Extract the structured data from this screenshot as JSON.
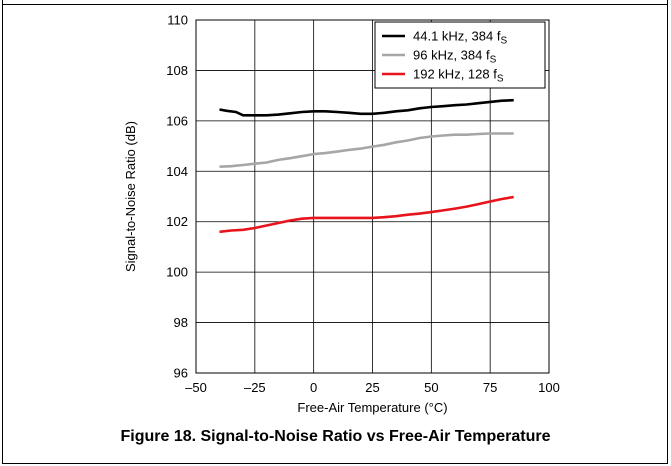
{
  "caption": "Figure 18. Signal-to-Noise Ratio vs Free-Air Temperature",
  "chart_data": {
    "type": "line",
    "title": "",
    "xlabel": "Free-Air Temperature (°C)",
    "ylabel": "Signal-to-Noise Ratio (dB)",
    "xlim": [
      -50,
      100
    ],
    "ylim": [
      96,
      110
    ],
    "x_ticks": [
      -50,
      -25,
      0,
      25,
      50,
      75,
      100
    ],
    "x_tick_labels": [
      "–50",
      "–25",
      "0",
      "25",
      "50",
      "75",
      "100"
    ],
    "y_ticks": [
      96,
      98,
      100,
      102,
      104,
      106,
      108,
      110
    ],
    "y_tick_labels": [
      "96",
      "98",
      "100",
      "102",
      "104",
      "106",
      "108",
      "110"
    ],
    "grid": true,
    "legend_position": "top-right",
    "series": [
      {
        "name": "44.1 kHz, 384 fS",
        "label_main": "44.1 kHz, 384 f",
        "label_sub": "S",
        "color": "#000000",
        "x": [
          -40,
          -37,
          -33,
          -30,
          -25,
          -20,
          -15,
          -10,
          -5,
          0,
          5,
          10,
          15,
          20,
          25,
          30,
          35,
          40,
          45,
          50,
          55,
          60,
          65,
          70,
          75,
          80,
          85
        ],
        "y": [
          106.45,
          106.4,
          106.35,
          106.22,
          106.22,
          106.22,
          106.25,
          106.3,
          106.35,
          106.38,
          106.38,
          106.35,
          106.32,
          106.28,
          106.28,
          106.32,
          106.38,
          106.42,
          106.5,
          106.55,
          106.58,
          106.62,
          106.65,
          106.7,
          106.75,
          106.8,
          106.82
        ]
      },
      {
        "name": "96 kHz, 384 fS",
        "label_main": "96  kHz, 384 f",
        "label_sub": "S",
        "color": "#a6a6a6",
        "x": [
          -40,
          -35,
          -30,
          -25,
          -20,
          -15,
          -10,
          -5,
          0,
          5,
          10,
          15,
          20,
          25,
          30,
          35,
          40,
          45,
          50,
          55,
          60,
          65,
          70,
          75,
          80,
          85
        ],
        "y": [
          104.18,
          104.2,
          104.25,
          104.3,
          104.35,
          104.45,
          104.52,
          104.6,
          104.68,
          104.72,
          104.78,
          104.85,
          104.9,
          104.98,
          105.05,
          105.15,
          105.22,
          105.32,
          105.38,
          105.42,
          105.45,
          105.45,
          105.48,
          105.5,
          105.5,
          105.5
        ]
      },
      {
        "name": "192 kHz, 128 fS",
        "label_main": "192 kHz, 128 f",
        "label_sub": "S",
        "color": "#e8141b",
        "x": [
          -40,
          -35,
          -30,
          -25,
          -20,
          -15,
          -10,
          -5,
          0,
          5,
          10,
          15,
          20,
          25,
          30,
          35,
          40,
          45,
          50,
          55,
          60,
          65,
          70,
          75,
          80,
          85
        ],
        "y": [
          101.6,
          101.65,
          101.68,
          101.75,
          101.85,
          101.95,
          102.05,
          102.12,
          102.15,
          102.15,
          102.15,
          102.15,
          102.15,
          102.15,
          102.18,
          102.22,
          102.28,
          102.32,
          102.38,
          102.45,
          102.52,
          102.6,
          102.7,
          102.8,
          102.9,
          102.98
        ]
      }
    ]
  }
}
